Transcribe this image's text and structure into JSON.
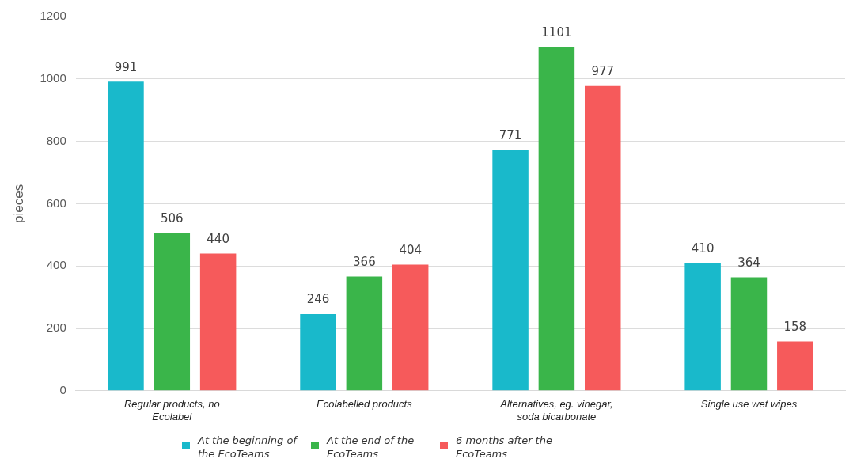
{
  "chart_data": {
    "type": "bar",
    "ylabel": "pieces",
    "categories": [
      "Regular products, no Ecolabel",
      "Ecolabelled products",
      "Alternatives, eg. vinegar, soda bicarbonate",
      "Single use wet wipes"
    ],
    "series": [
      {
        "name": "At the beginning of the EcoTeams",
        "color": "#19b9cb",
        "values": [
          991,
          246,
          771,
          410
        ]
      },
      {
        "name": "At the end of the EcoTeams",
        "color": "#3ab54a",
        "values": [
          506,
          366,
          1101,
          364
        ]
      },
      {
        "name": "6 months after the EcoTeams",
        "color": "#f65a5b",
        "values": [
          440,
          404,
          977,
          158
        ]
      }
    ],
    "ylim": [
      0,
      1200
    ],
    "yticks": [
      0,
      200,
      400,
      600,
      800,
      1000,
      1200
    ],
    "grid": "y",
    "data_labels": true,
    "legend": "bottom"
  }
}
